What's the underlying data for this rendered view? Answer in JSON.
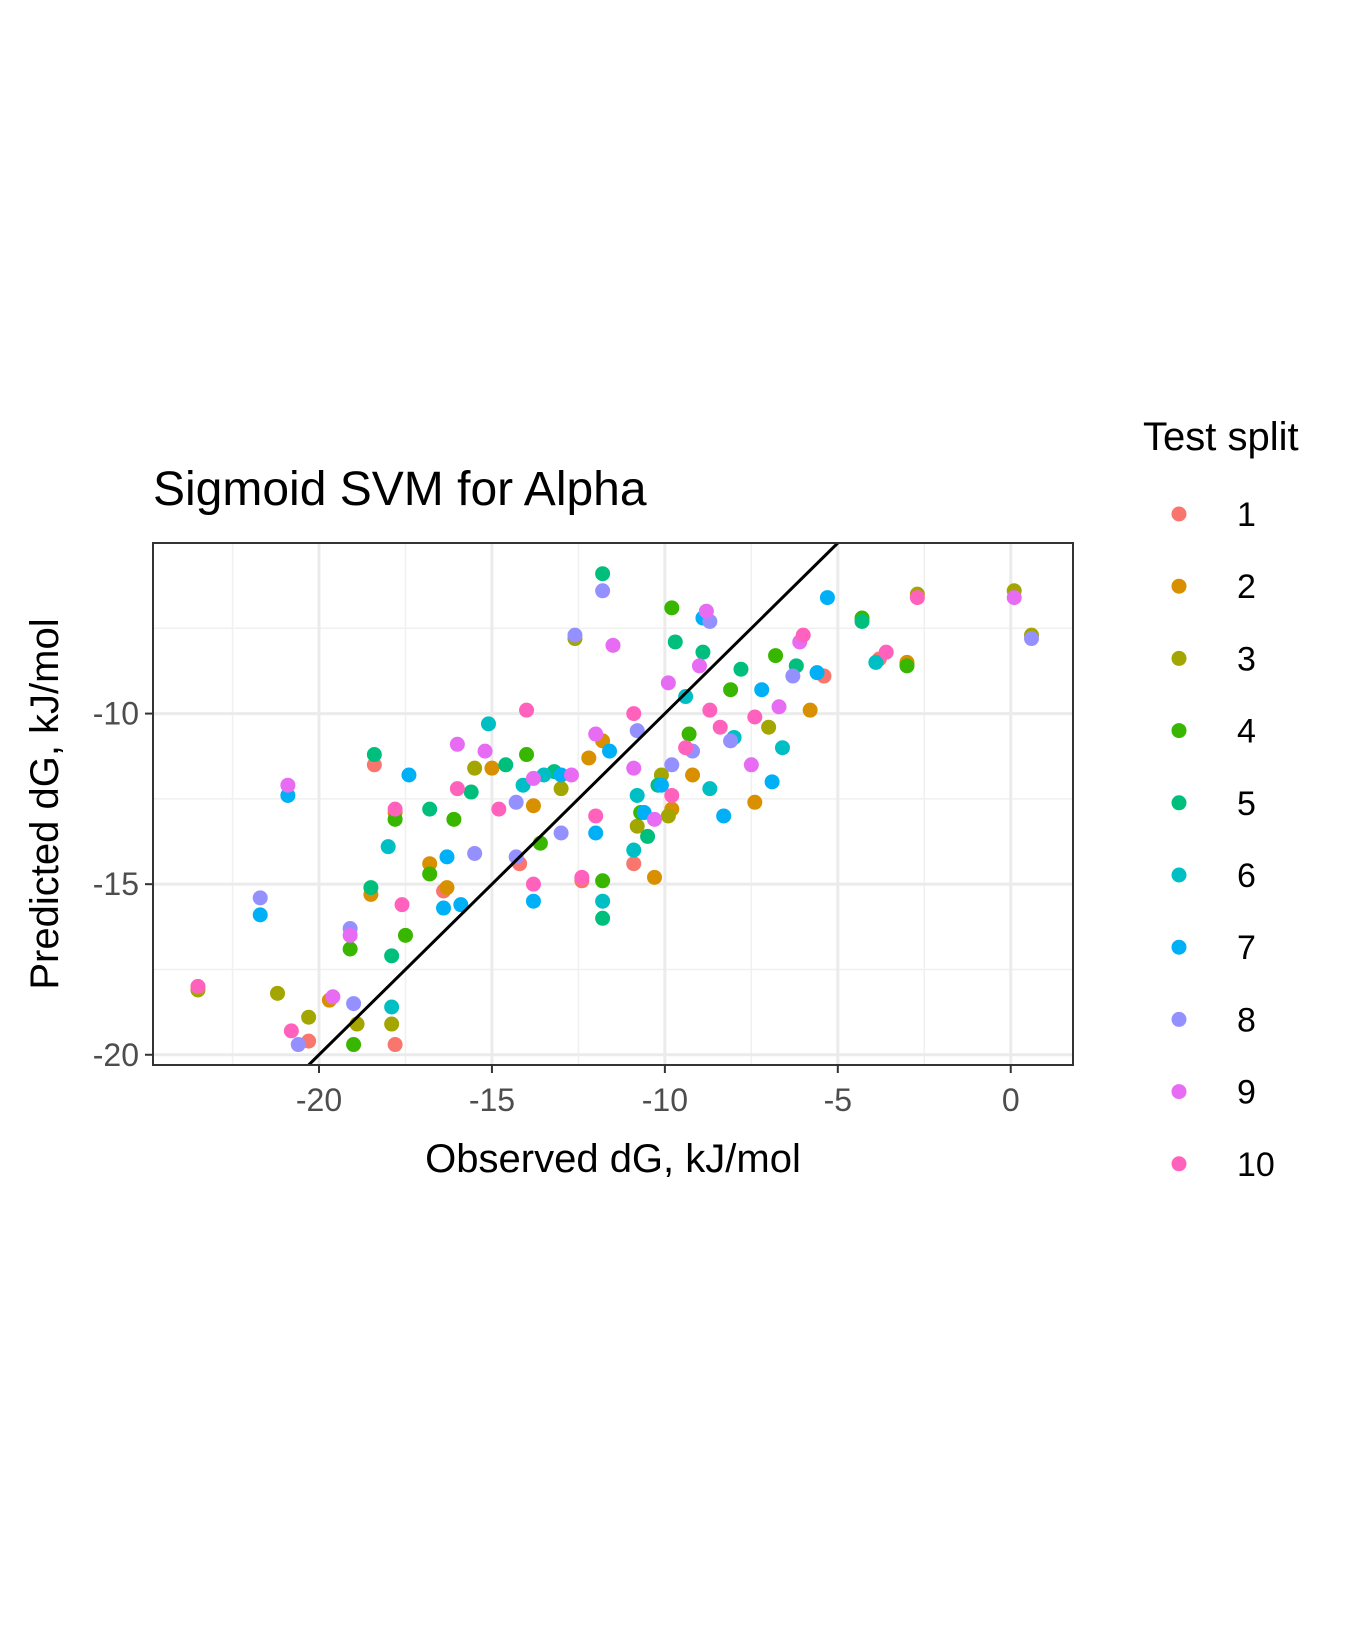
{
  "chart_data": {
    "type": "scatter",
    "title": "Sigmoid SVM for Alpha",
    "xlabel": "Observed dG, kJ/mol",
    "ylabel": "Predicted dG, kJ/mol",
    "xlim": [
      -24.8,
      1.8
    ],
    "ylim": [
      -20.3,
      -5.0
    ],
    "x_ticks": [
      -20,
      -15,
      -10,
      -5,
      0
    ],
    "x_tick_labels": [
      "-20",
      "-15",
      "-10",
      "-5",
      "0"
    ],
    "y_ticks": [
      -20,
      -15,
      -10
    ],
    "y_tick_labels": [
      "-20",
      "-15",
      "-10"
    ],
    "grid": true,
    "reference_line": "y = x",
    "legend": {
      "title": "Test split",
      "position": "right"
    },
    "series": [
      {
        "name": "1",
        "color": "#F8766D",
        "points": [
          [
            -23.5,
            -18.0
          ],
          [
            -20.3,
            -19.6
          ],
          [
            -17.8,
            -19.7
          ],
          [
            -18.4,
            -11.5
          ],
          [
            -14.2,
            -14.4
          ],
          [
            -10.9,
            -14.4
          ],
          [
            -5.4,
            -8.9
          ],
          [
            -3.8,
            -8.4
          ],
          [
            -16.4,
            -15.2
          ],
          [
            -12.4,
            -14.9
          ]
        ]
      },
      {
        "name": "2",
        "color": "#D89000",
        "points": [
          [
            -19.7,
            -18.4
          ],
          [
            -18.5,
            -15.3
          ],
          [
            -17.8,
            -12.9
          ],
          [
            -16.8,
            -14.4
          ],
          [
            -15.0,
            -11.6
          ],
          [
            -13.8,
            -12.7
          ],
          [
            -11.8,
            -10.8
          ],
          [
            -10.3,
            -14.8
          ],
          [
            -9.8,
            -12.8
          ],
          [
            -9.2,
            -11.8
          ],
          [
            -7.4,
            -12.6
          ],
          [
            -5.8,
            -9.9
          ],
          [
            -3.0,
            -8.5
          ],
          [
            -12.2,
            -11.3
          ],
          [
            -16.3,
            -15.1
          ]
        ]
      },
      {
        "name": "3",
        "color": "#A3A500",
        "points": [
          [
            -23.5,
            -18.1
          ],
          [
            -21.2,
            -18.2
          ],
          [
            -20.3,
            -18.9
          ],
          [
            -18.9,
            -19.1
          ],
          [
            -17.9,
            -19.1
          ],
          [
            -12.6,
            -7.8
          ],
          [
            -10.1,
            -11.8
          ],
          [
            -9.9,
            -13.0
          ],
          [
            -7.0,
            -10.4
          ],
          [
            -2.7,
            -6.5
          ],
          [
            0.1,
            -6.4
          ],
          [
            0.6,
            -7.7
          ],
          [
            -13.0,
            -12.2
          ],
          [
            -15.5,
            -11.6
          ],
          [
            -10.8,
            -13.3
          ]
        ]
      },
      {
        "name": "4",
        "color": "#39B600",
        "points": [
          [
            -19.0,
            -19.7
          ],
          [
            -19.1,
            -16.9
          ],
          [
            -17.5,
            -16.5
          ],
          [
            -17.8,
            -13.1
          ],
          [
            -16.1,
            -13.1
          ],
          [
            -14.0,
            -11.2
          ],
          [
            -13.6,
            -13.8
          ],
          [
            -11.8,
            -14.9
          ],
          [
            -10.7,
            -12.9
          ],
          [
            -9.8,
            -6.9
          ],
          [
            -9.3,
            -10.6
          ],
          [
            -8.1,
            -9.3
          ],
          [
            -6.8,
            -8.3
          ],
          [
            -3.0,
            -8.6
          ],
          [
            -4.3,
            -7.2
          ],
          [
            -16.8,
            -14.7
          ]
        ]
      },
      {
        "name": "5",
        "color": "#00BF7D",
        "points": [
          [
            -18.4,
            -11.2
          ],
          [
            -18.5,
            -15.1
          ],
          [
            -16.8,
            -12.8
          ],
          [
            -15.6,
            -12.3
          ],
          [
            -14.6,
            -11.5
          ],
          [
            -13.2,
            -11.7
          ],
          [
            -11.8,
            -16.0
          ],
          [
            -11.8,
            -5.9
          ],
          [
            -10.5,
            -13.6
          ],
          [
            -9.7,
            -7.9
          ],
          [
            -8.9,
            -8.2
          ],
          [
            -7.8,
            -8.7
          ],
          [
            -6.2,
            -8.6
          ],
          [
            -4.3,
            -7.3
          ],
          [
            -17.9,
            -17.1
          ],
          [
            -10.2,
            -12.1
          ]
        ]
      },
      {
        "name": "6",
        "color": "#00BFC4",
        "points": [
          [
            -18.0,
            -13.9
          ],
          [
            -17.9,
            -18.6
          ],
          [
            -15.1,
            -10.3
          ],
          [
            -13.5,
            -11.8
          ],
          [
            -11.8,
            -15.5
          ],
          [
            -10.9,
            -14.0
          ],
          [
            -9.4,
            -9.5
          ],
          [
            -8.7,
            -12.2
          ],
          [
            -8.0,
            -10.7
          ],
          [
            -6.6,
            -11.0
          ],
          [
            -3.9,
            -8.5
          ],
          [
            -10.8,
            -12.4
          ],
          [
            -14.1,
            -12.1
          ]
        ]
      },
      {
        "name": "7",
        "color": "#00B0F6",
        "points": [
          [
            -21.7,
            -15.9
          ],
          [
            -20.9,
            -12.4
          ],
          [
            -17.4,
            -11.8
          ],
          [
            -16.4,
            -15.7
          ],
          [
            -15.9,
            -15.6
          ],
          [
            -13.8,
            -15.5
          ],
          [
            -13.0,
            -11.8
          ],
          [
            -12.0,
            -13.5
          ],
          [
            -11.6,
            -11.1
          ],
          [
            -10.6,
            -12.9
          ],
          [
            -10.1,
            -12.1
          ],
          [
            -8.9,
            -7.2
          ],
          [
            -8.3,
            -13.0
          ],
          [
            -7.2,
            -9.3
          ],
          [
            -6.9,
            -12.0
          ],
          [
            -5.3,
            -6.6
          ],
          [
            -5.6,
            -8.8
          ],
          [
            -16.3,
            -14.2
          ]
        ]
      },
      {
        "name": "8",
        "color": "#9590FF",
        "points": [
          [
            -21.7,
            -15.4
          ],
          [
            -20.6,
            -19.7
          ],
          [
            -19.1,
            -16.3
          ],
          [
            -19.0,
            -18.5
          ],
          [
            -15.5,
            -14.1
          ],
          [
            -14.3,
            -14.2
          ],
          [
            -14.3,
            -12.6
          ],
          [
            -13.0,
            -13.5
          ],
          [
            -12.6,
            -7.7
          ],
          [
            -11.8,
            -6.4
          ],
          [
            -10.8,
            -10.5
          ],
          [
            -9.2,
            -11.1
          ],
          [
            -8.7,
            -7.3
          ],
          [
            -8.1,
            -10.8
          ],
          [
            -6.3,
            -8.9
          ],
          [
            0.6,
            -7.8
          ],
          [
            -9.8,
            -11.5
          ]
        ]
      },
      {
        "name": "9",
        "color": "#E76BF3",
        "points": [
          [
            -20.9,
            -12.1
          ],
          [
            -19.6,
            -18.3
          ],
          [
            -19.1,
            -16.5
          ],
          [
            -16.0,
            -10.9
          ],
          [
            -15.2,
            -11.1
          ],
          [
            -13.8,
            -11.9
          ],
          [
            -12.7,
            -11.8
          ],
          [
            -12.0,
            -10.6
          ],
          [
            -11.5,
            -8.0
          ],
          [
            -10.3,
            -13.1
          ],
          [
            -9.9,
            -9.1
          ],
          [
            -9.0,
            -8.6
          ],
          [
            -8.8,
            -7.0
          ],
          [
            -7.5,
            -11.5
          ],
          [
            -6.7,
            -9.8
          ],
          [
            -6.1,
            -7.9
          ],
          [
            0.1,
            -6.6
          ],
          [
            -10.9,
            -11.6
          ]
        ]
      },
      {
        "name": "10",
        "color": "#FF62BC",
        "points": [
          [
            -23.5,
            -18.0
          ],
          [
            -20.8,
            -19.3
          ],
          [
            -17.8,
            -12.8
          ],
          [
            -17.6,
            -15.6
          ],
          [
            -16.0,
            -12.2
          ],
          [
            -14.8,
            -12.8
          ],
          [
            -13.8,
            -15.0
          ],
          [
            -12.4,
            -14.8
          ],
          [
            -12.0,
            -13.0
          ],
          [
            -10.9,
            -10.0
          ],
          [
            -9.8,
            -12.4
          ],
          [
            -9.4,
            -11.0
          ],
          [
            -8.7,
            -9.9
          ],
          [
            -7.4,
            -10.1
          ],
          [
            -6.0,
            -7.7
          ],
          [
            -3.6,
            -8.2
          ],
          [
            -2.7,
            -6.6
          ],
          [
            -14.0,
            -9.9
          ],
          [
            -8.4,
            -10.4
          ]
        ]
      }
    ]
  }
}
